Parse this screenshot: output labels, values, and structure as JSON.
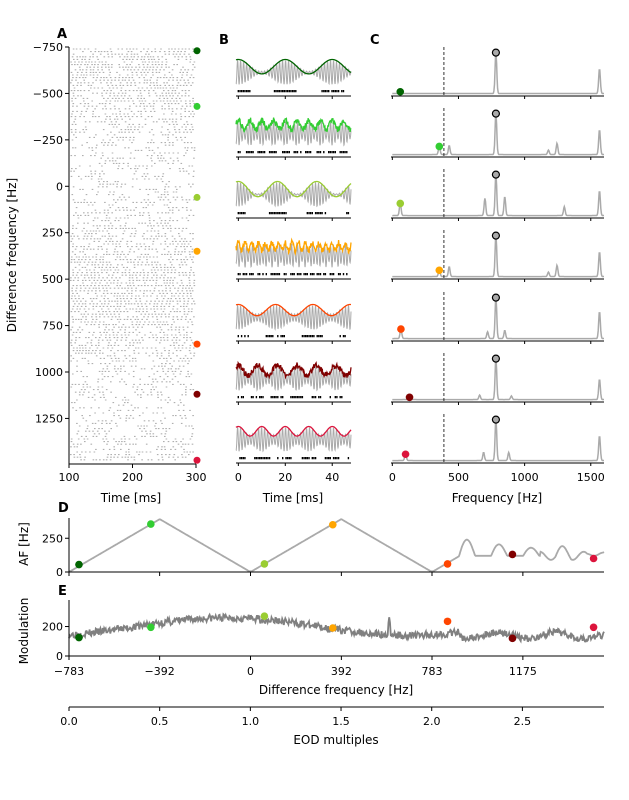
{
  "figure": {
    "panel_labels": [
      "A",
      "B",
      "C",
      "D",
      "E"
    ]
  },
  "colors": {
    "grey": "#aaaaaa",
    "dark_grey": "#808080",
    "markers": [
      "#006400",
      "#32cd32",
      "#9acd32",
      "#ffa500",
      "#ff4500",
      "#800000",
      "#dc143c"
    ]
  },
  "chart_data": [
    {
      "panel": "A",
      "type": "scatter",
      "description_of_marks": "spike raster rows",
      "xlabel": "Time [ms]",
      "ylabel": "Difference frequency [Hz]",
      "xlim": [
        100,
        300
      ],
      "ylim": [
        -750,
        1490
      ],
      "y_inverted": true,
      "xticks": [
        "100",
        "200",
        "300"
      ],
      "yticks": [
        -750,
        -500,
        -250,
        0,
        250,
        500,
        750,
        1000,
        1250
      ],
      "ytick_labels": [
        "−750",
        "−500",
        "−250",
        "0",
        "250",
        "500",
        "750",
        "1000",
        "1250"
      ],
      "marker_df": [
        -730,
        -430,
        60,
        350,
        850,
        1120,
        1475
      ]
    },
    {
      "panel": "B",
      "type": "line",
      "xlabel": "Time [ms]",
      "xlim": [
        -1,
        48
      ],
      "xticks": [
        "0",
        "20",
        "40"
      ],
      "rows": [
        {
          "df": -730,
          "envelope_freq": 50
        },
        {
          "df": -430,
          "envelope_freq": 200
        },
        {
          "df": 60,
          "envelope_freq": 60
        },
        {
          "df": 350,
          "envelope_freq": 350
        },
        {
          "df": 850,
          "envelope_freq": 63
        },
        {
          "df": 1120,
          "envelope_freq": 120
        },
        {
          "df": 1475,
          "envelope_freq": 100
        }
      ]
    },
    {
      "panel": "C",
      "type": "line",
      "xlabel": "Frequency [Hz]",
      "xlim": [
        -10,
        1600
      ],
      "xticks": [
        "0",
        "500",
        "1000",
        "1500"
      ],
      "vline_x": 390,
      "eod_peak_x": 783,
      "rows": [
        {
          "marker_x": 60,
          "marker_frac": 0.05
        },
        {
          "marker_x": 355,
          "marker_frac": 0.19
        },
        {
          "marker_x": 60,
          "marker_frac": 0.28
        },
        {
          "marker_x": 355,
          "marker_frac": 0.15
        },
        {
          "marker_x": 65,
          "marker_frac": 0.22
        },
        {
          "marker_x": 130,
          "marker_frac": 0.06
        },
        {
          "marker_x": 100,
          "marker_frac": 0.15
        }
      ]
    },
    {
      "panel": "D",
      "type": "line",
      "ylabel": "AF [Hz]",
      "xlim": [
        -783,
        1525
      ],
      "ylim": [
        0,
        400
      ],
      "yticks": [
        "0",
        "250"
      ],
      "markers": [
        {
          "x": -740,
          "y": 55
        },
        {
          "x": -430,
          "y": 355
        },
        {
          "x": 60,
          "y": 60
        },
        {
          "x": 355,
          "y": 350
        },
        {
          "x": 850,
          "y": 60
        },
        {
          "x": 1130,
          "y": 130
        },
        {
          "x": 1480,
          "y": 100
        }
      ]
    },
    {
      "panel": "E",
      "type": "line",
      "ylabel": "Modulation",
      "xlabel": "Difference frequency [Hz]",
      "xlim": [
        -783,
        1525
      ],
      "ylim": [
        0,
        380
      ],
      "yticks": [
        "0",
        "200"
      ],
      "xticks": [
        -783,
        -392,
        0,
        392,
        783,
        1175
      ],
      "xtick_labels": [
        "−783",
        "−392",
        "0",
        "392",
        "783",
        "1175"
      ],
      "markers": [
        {
          "x": -740,
          "y": 125
        },
        {
          "x": -430,
          "y": 195
        },
        {
          "x": 60,
          "y": 270
        },
        {
          "x": 355,
          "y": 190
        },
        {
          "x": 850,
          "y": 235
        },
        {
          "x": 1130,
          "y": 120
        },
        {
          "x": 1480,
          "y": 195
        }
      ],
      "secondary_axis": {
        "xlabel": "EOD multiples",
        "xlim": [
          0,
          2.95
        ],
        "xticks": [
          0,
          0.5,
          1.0,
          1.5,
          2.0,
          2.5
        ],
        "xtick_labels": [
          "0.0",
          "0.5",
          "1.0",
          "1.5",
          "2.0",
          "2.5"
        ]
      }
    }
  ]
}
